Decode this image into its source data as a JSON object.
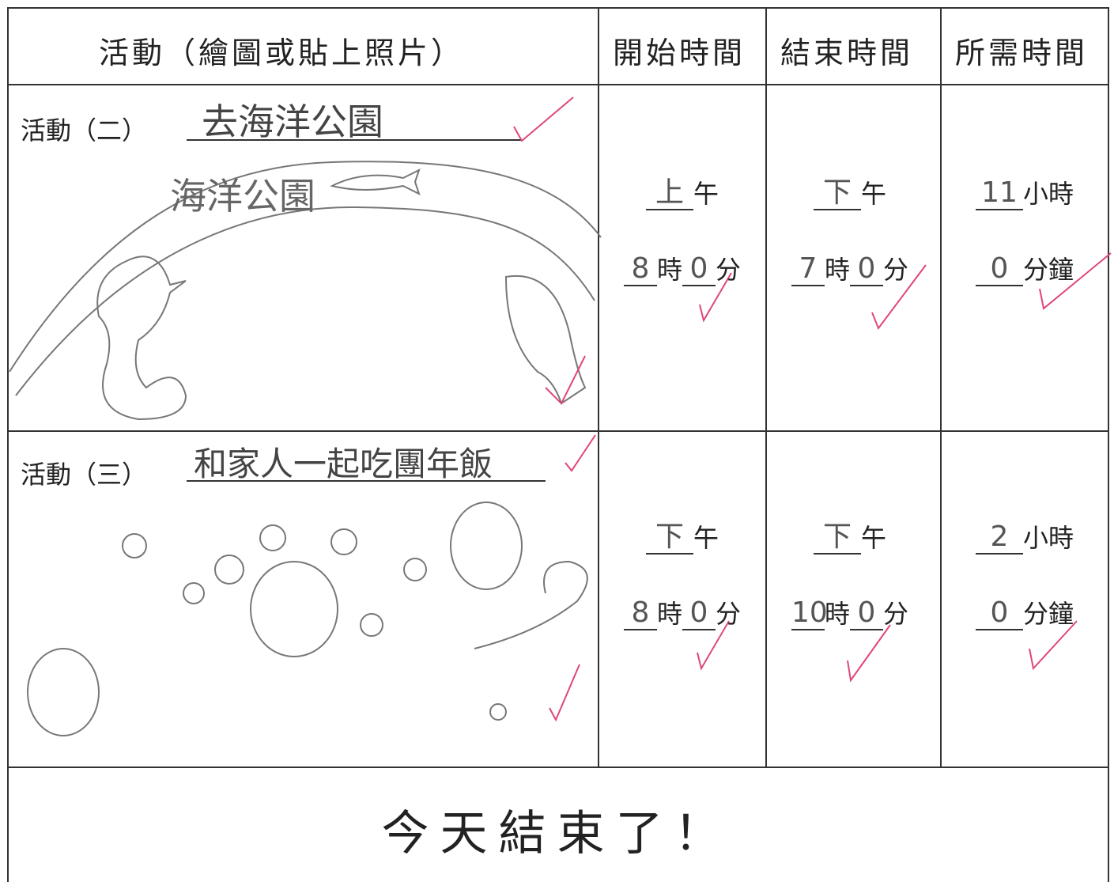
{
  "header": {
    "columns": [
      "活動（繪圖或貼上照片）",
      "開始時間",
      "結束時間",
      "所需時間"
    ]
  },
  "rows": [
    {
      "label": "活動（二）",
      "activity": "去海洋公園",
      "drawing_caption": "海洋公園",
      "start": {
        "period": "上",
        "period_unit": "午",
        "hour": "8",
        "hour_unit": "時",
        "minute": "0",
        "minute_unit": "分"
      },
      "end": {
        "period": "下",
        "period_unit": "午",
        "hour": "7",
        "hour_unit": "時",
        "minute": "0",
        "minute_unit": "分"
      },
      "duration": {
        "hours": "11",
        "hours_unit": "小時",
        "minutes": "0",
        "minutes_unit": "分鐘"
      }
    },
    {
      "label": "活動（三）",
      "activity": "和家人一起吃團年飯",
      "start": {
        "period": "下",
        "period_unit": "午",
        "hour": "8",
        "hour_unit": "時",
        "minute": "0",
        "minute_unit": "分"
      },
      "end": {
        "period": "下",
        "period_unit": "午",
        "hour": "10",
        "hour_unit": "時",
        "minute": "0",
        "minute_unit": "分"
      },
      "duration": {
        "hours": "2",
        "hours_unit": "小時",
        "minutes": "0",
        "minutes_unit": "分鐘"
      }
    }
  ],
  "footer": "今天結束了！"
}
